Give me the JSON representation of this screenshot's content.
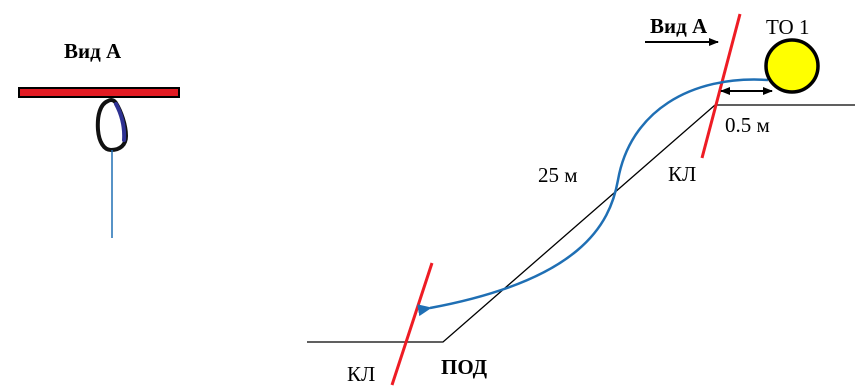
{
  "view_detail": {
    "title": "Вид А"
  },
  "scheme": {
    "view_marker": "Вид А",
    "anchor_label": "ТО 1",
    "offset_label": "0.5 м",
    "rope_length_label": "25 м",
    "upper_edge_label": "КЛ",
    "lower_edge_label": "КЛ",
    "bottom_label": "ПОД"
  },
  "colors": {
    "edge_line": "#ee1c24",
    "rope": "#1f6fb4",
    "anchor_fill": "#ffff00",
    "terrain": "#000000",
    "beam_fill": "#e21b23",
    "carabiner_gate": "#2e3192"
  },
  "icons": {
    "carabiner": "carabiner-icon",
    "anchor": "anchor-point-icon"
  }
}
